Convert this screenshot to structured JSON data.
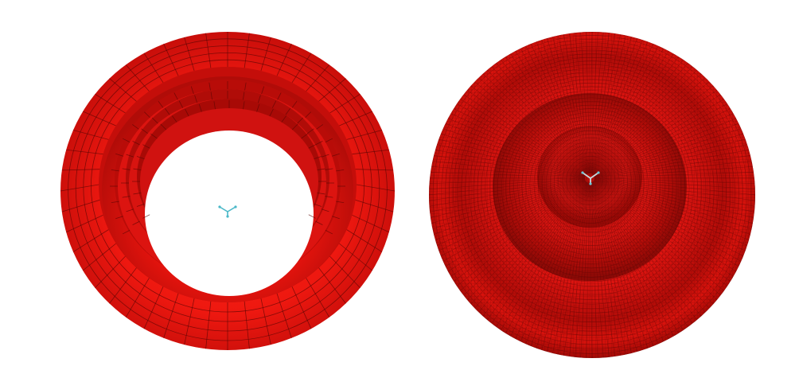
{
  "panels": [
    {
      "id": "mesh-view-left",
      "description_visible": false,
      "icon": "coordinate-triad-icon",
      "colors": {
        "surface": "#e8140e",
        "surface_dark": "#a80c08",
        "mesh_line": "#5a0604",
        "triad": "#4ab8c8"
      }
    },
    {
      "id": "mesh-view-right",
      "description_visible": false,
      "icon": "coordinate-triad-icon",
      "colors": {
        "surface": "#dc120c",
        "surface_dark": "#8a0a06",
        "mesh_line": "#4a0504",
        "triad": "#c8d8dc"
      }
    }
  ],
  "background": "#ffffff"
}
